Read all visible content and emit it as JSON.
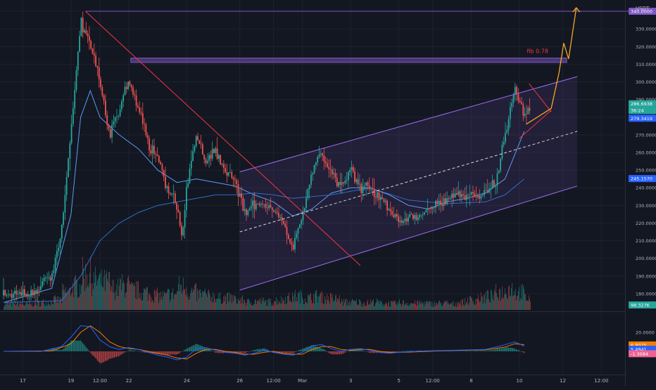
{
  "currency_label": "USDT",
  "chart_data": {
    "type": "candlestick",
    "title": "",
    "price_range": [
      172,
      344
    ],
    "price_ticks": [
      180,
      190,
      200,
      210,
      220,
      230,
      240,
      250,
      260,
      270,
      280,
      290,
      300,
      310,
      320,
      330,
      340
    ],
    "price_tick_labels": [
      "180.0000",
      "190.0000",
      "200.0000",
      "210.0000",
      "220.0000",
      "230.0000",
      "240.0000",
      "250.0000",
      "260.0000",
      "270.0000",
      "280.0000",
      "290.0000",
      "300.0000",
      "310.0000",
      "320.0000",
      "330.0000",
      "340.0000"
    ],
    "grid": true,
    "x_labels": [
      {
        "t": 2,
        "label": "17"
      },
      {
        "t": 7,
        "label": "19"
      },
      {
        "t": 10,
        "label": "12:00"
      },
      {
        "t": 13,
        "label": "22"
      },
      {
        "t": 19,
        "label": "24"
      },
      {
        "t": 24.5,
        "label": "26"
      },
      {
        "t": 28,
        "label": "12:00"
      },
      {
        "t": 31,
        "label": "Mar"
      },
      {
        "t": 36,
        "label": "3"
      },
      {
        "t": 41,
        "label": "5"
      },
      {
        "t": 44.5,
        "label": "12:00"
      },
      {
        "t": 48.5,
        "label": "8"
      },
      {
        "t": 53.5,
        "label": "10"
      },
      {
        "t": 58,
        "label": "12"
      },
      {
        "t": 62,
        "label": "12:00"
      }
    ],
    "price_path": [
      [
        0,
        179
      ],
      [
        3,
        180
      ],
      [
        5,
        190
      ],
      [
        6,
        215
      ],
      [
        7,
        270
      ],
      [
        8,
        335
      ],
      [
        9,
        320
      ],
      [
        10,
        300
      ],
      [
        11,
        270
      ],
      [
        12,
        285
      ],
      [
        13,
        300
      ],
      [
        14,
        285
      ],
      [
        15,
        265
      ],
      [
        16,
        255
      ],
      [
        17,
        240
      ],
      [
        18,
        230
      ],
      [
        18.5,
        210
      ],
      [
        19,
        240
      ],
      [
        20,
        270
      ],
      [
        21,
        255
      ],
      [
        22,
        262
      ],
      [
        23,
        250
      ],
      [
        24,
        244
      ],
      [
        25,
        225
      ],
      [
        26,
        230
      ],
      [
        27,
        232
      ],
      [
        28,
        228
      ],
      [
        29,
        220
      ],
      [
        30,
        205
      ],
      [
        31,
        225
      ],
      [
        32,
        250
      ],
      [
        33,
        260
      ],
      [
        34,
        248
      ],
      [
        35,
        240
      ],
      [
        36,
        250
      ],
      [
        37,
        240
      ],
      [
        38,
        240
      ],
      [
        39,
        235
      ],
      [
        40,
        228
      ],
      [
        41,
        222
      ],
      [
        42,
        222
      ],
      [
        43,
        224
      ],
      [
        44,
        228
      ],
      [
        45,
        232
      ],
      [
        46,
        233
      ],
      [
        47,
        236
      ],
      [
        48,
        236
      ],
      [
        49,
        235
      ],
      [
        50,
        238
      ],
      [
        51,
        242
      ],
      [
        52,
        270
      ],
      [
        53,
        296
      ],
      [
        54,
        282
      ],
      [
        54.7,
        286.7
      ]
    ],
    "moving_averages": [
      {
        "color": "#5b9cf6",
        "points": [
          [
            0,
            175
          ],
          [
            5,
            183
          ],
          [
            7,
            225
          ],
          [
            8,
            280
          ],
          [
            9,
            295
          ],
          [
            10,
            280
          ],
          [
            12,
            270
          ],
          [
            14,
            262
          ],
          [
            16,
            250
          ],
          [
            18,
            243
          ],
          [
            20,
            245
          ],
          [
            22,
            243
          ],
          [
            24,
            241
          ],
          [
            26,
            236
          ],
          [
            28,
            232
          ],
          [
            30,
            224
          ],
          [
            32,
            228
          ],
          [
            34,
            237
          ],
          [
            36,
            240
          ],
          [
            38,
            240
          ],
          [
            40,
            236
          ],
          [
            42,
            230
          ],
          [
            44,
            228
          ],
          [
            46,
            232
          ],
          [
            48,
            234
          ],
          [
            50,
            237
          ],
          [
            52,
            245
          ],
          [
            54,
            272
          ]
        ]
      },
      {
        "color": "#2e6fc7",
        "points": [
          [
            0,
            175
          ],
          [
            6,
            176
          ],
          [
            8,
            190
          ],
          [
            10,
            210
          ],
          [
            12,
            220
          ],
          [
            14,
            226
          ],
          [
            16,
            230
          ],
          [
            18,
            232
          ],
          [
            20,
            234
          ],
          [
            22,
            236
          ],
          [
            24,
            236
          ],
          [
            26,
            237
          ],
          [
            28,
            236
          ],
          [
            30,
            234
          ],
          [
            34,
            236
          ],
          [
            38,
            240
          ],
          [
            42,
            233
          ],
          [
            46,
            231
          ],
          [
            50,
            232
          ],
          [
            52,
            236
          ],
          [
            54,
            245
          ]
        ]
      }
    ],
    "volume": {
      "label": "98.327K",
      "heights": [
        0.15,
        0.16,
        0.14,
        0.17,
        0.2,
        0.25,
        0.45,
        0.6,
        0.9,
        0.75,
        0.7,
        0.55,
        0.62,
        0.5,
        0.45,
        0.38,
        0.35,
        0.4,
        0.6,
        0.45,
        0.4,
        0.35,
        0.3,
        0.3,
        0.25,
        0.2,
        0.22,
        0.2,
        0.25,
        0.3,
        0.35,
        0.3,
        0.35,
        0.3,
        0.28,
        0.2,
        0.2,
        0.18,
        0.2,
        0.17,
        0.16,
        0.18,
        0.17,
        0.18,
        0.16,
        0.17,
        0.15,
        0.2,
        0.25,
        0.3,
        0.35,
        0.45,
        0.55,
        0.45,
        0.3
      ]
    },
    "annotations": {
      "channel": {
        "upper_start": [
          24.5,
          249
        ],
        "upper_end": [
          59.5,
          303
        ],
        "lower_start": [
          24.5,
          182
        ],
        "lower_end": [
          59.5,
          241
        ],
        "fill_end": 59.5,
        "mid_start": [
          24.5,
          215
        ],
        "mid_end": [
          59.5,
          272
        ]
      },
      "resistance_zone": {
        "x1": 13.2,
        "x2": 58.4,
        "top": 313.5,
        "bottom": 311
      },
      "top_line": {
        "x1": 8.5,
        "x2": 68,
        "price": 340
      },
      "downtrend": {
        "x1": 8.5,
        "y1": 340,
        "x2": 37,
        "y2": 196
      },
      "fib_label": "fib 0.78",
      "fib_anchor": [
        55,
        318
      ],
      "projection": [
        [
          54.2,
          276
        ],
        [
          56.8,
          285
        ],
        [
          57.6,
          305
        ],
        [
          58.1,
          322
        ],
        [
          58.6,
          313
        ],
        [
          59.4,
          342
        ]
      ],
      "wedge_lines": [
        [
          [
            53.5,
            268
          ],
          [
            56.8,
            284
          ]
        ],
        [
          [
            54.5,
            299
          ],
          [
            56.8,
            283
          ]
        ]
      ]
    },
    "price_labels": [
      {
        "text": "340.0000",
        "price": 340,
        "color": "#7e57c2"
      },
      {
        "text": "286.6938",
        "price": 287.6,
        "color": "#26a69a"
      },
      {
        "text": "36:24",
        "price": 283.8,
        "color": "#26a69a"
      },
      {
        "text": "279.3419",
        "price": 279.4,
        "color": "#2962ff"
      },
      {
        "text": "245.1570",
        "price": 245.2,
        "color": "#2962ff"
      }
    ],
    "macd": {
      "ticks": [
        {
          "v": 20,
          "label": "20.0000"
        }
      ],
      "labels": [
        {
          "text": "6.8025",
          "v": 6.8,
          "color": "#f57c00"
        },
        {
          "text": "5.4941",
          "v": 2.2,
          "color": "#2962ff"
        },
        {
          "text": "-1.3084",
          "v": -2.5,
          "color": "#f06292"
        }
      ],
      "macd_line": [
        [
          0,
          0
        ],
        [
          4,
          0.2
        ],
        [
          6,
          5
        ],
        [
          7,
          15
        ],
        [
          8,
          27
        ],
        [
          9,
          26
        ],
        [
          10,
          12
        ],
        [
          11,
          5
        ],
        [
          12,
          2
        ],
        [
          13,
          4
        ],
        [
          14,
          2
        ],
        [
          15,
          -1
        ],
        [
          16,
          -4
        ],
        [
          17,
          -6
        ],
        [
          18,
          -9
        ],
        [
          19,
          -6
        ],
        [
          20,
          3
        ],
        [
          21,
          4
        ],
        [
          22,
          1
        ],
        [
          23,
          -1
        ],
        [
          24,
          -2
        ],
        [
          25,
          -4
        ],
        [
          26,
          -2
        ],
        [
          27,
          1
        ],
        [
          28,
          -1
        ],
        [
          29,
          -3
        ],
        [
          30,
          -4
        ],
        [
          31,
          -1
        ],
        [
          32,
          6
        ],
        [
          33,
          7
        ],
        [
          34,
          3
        ],
        [
          35,
          0
        ],
        [
          36,
          2
        ],
        [
          37,
          3
        ],
        [
          38,
          1
        ],
        [
          39,
          -1
        ],
        [
          40,
          -2
        ],
        [
          41,
          -1
        ],
        [
          42,
          -0.5
        ],
        [
          44,
          0.5
        ],
        [
          46,
          1
        ],
        [
          48,
          1.5
        ],
        [
          50,
          2
        ],
        [
          52,
          7
        ],
        [
          53,
          10
        ],
        [
          54,
          5.5
        ]
      ],
      "signal_line": [
        [
          0,
          0
        ],
        [
          5,
          0.5
        ],
        [
          7,
          8
        ],
        [
          8,
          20
        ],
        [
          9,
          27
        ],
        [
          10,
          20
        ],
        [
          11,
          10
        ],
        [
          12,
          5
        ],
        [
          13,
          3
        ],
        [
          14,
          2
        ],
        [
          15,
          0
        ],
        [
          16,
          -2
        ],
        [
          17,
          -4
        ],
        [
          18,
          -7
        ],
        [
          19,
          -8
        ],
        [
          20,
          -2
        ],
        [
          21,
          2
        ],
        [
          22,
          2
        ],
        [
          23,
          0
        ],
        [
          24,
          -1
        ],
        [
          25,
          -3
        ],
        [
          26,
          -3
        ],
        [
          27,
          -1
        ],
        [
          28,
          0
        ],
        [
          29,
          -2
        ],
        [
          30,
          -3
        ],
        [
          31,
          -3
        ],
        [
          32,
          2
        ],
        [
          33,
          5
        ],
        [
          34,
          5
        ],
        [
          35,
          2
        ],
        [
          36,
          1
        ],
        [
          37,
          2
        ],
        [
          38,
          2
        ],
        [
          39,
          0
        ],
        [
          40,
          -1
        ],
        [
          41,
          -1
        ],
        [
          42,
          -0.8
        ],
        [
          44,
          0
        ],
        [
          46,
          0.8
        ],
        [
          48,
          1.2
        ],
        [
          50,
          1.6
        ],
        [
          52,
          4.5
        ],
        [
          53,
          8
        ],
        [
          54,
          7
        ]
      ]
    }
  }
}
